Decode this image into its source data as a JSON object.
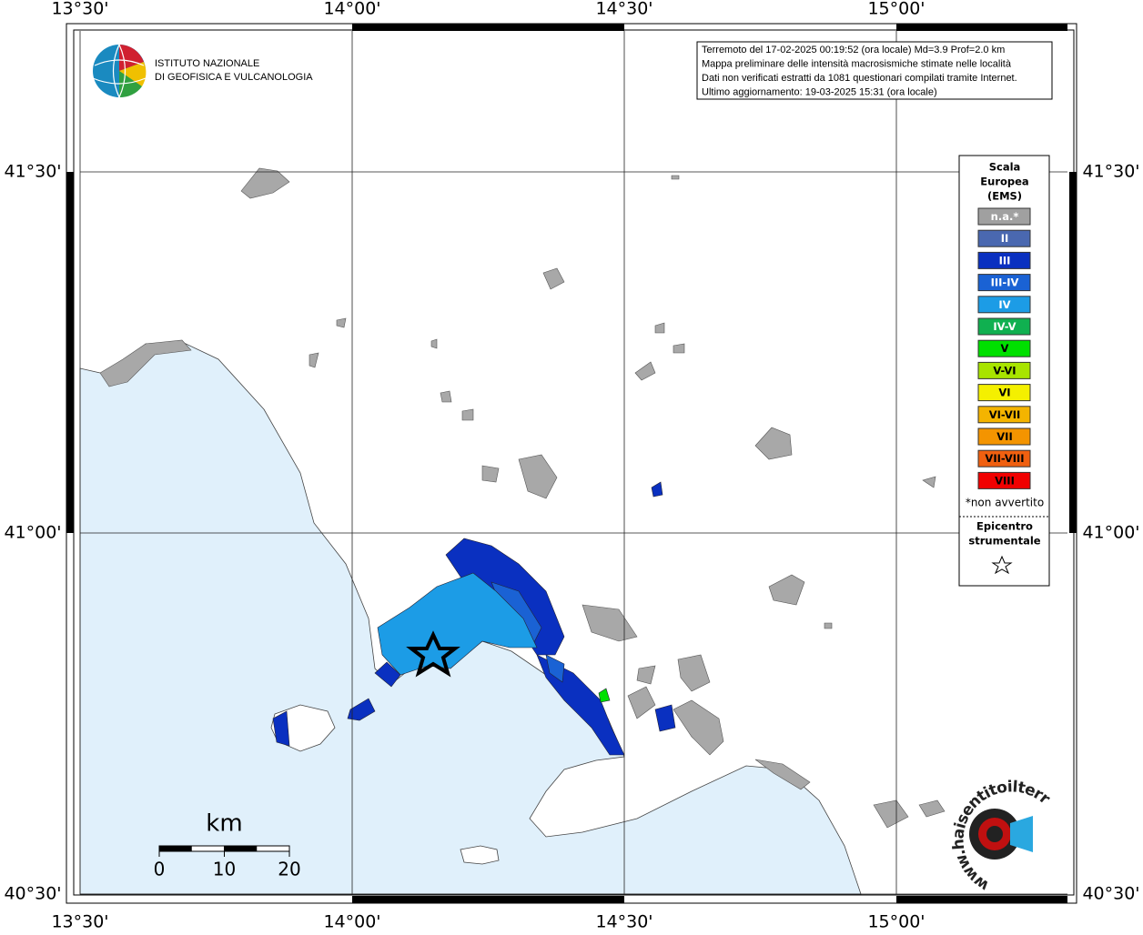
{
  "map": {
    "lon_ticks": [
      {
        "value": 13.5,
        "label": "13°30'"
      },
      {
        "value": 14.0,
        "label": "14°00'"
      },
      {
        "value": 14.5,
        "label": "14°30'"
      },
      {
        "value": 15.0,
        "label": "15°00'"
      }
    ],
    "lat_ticks": [
      {
        "value": 41.5,
        "label": "41°30'"
      },
      {
        "value": 41.0,
        "label": "41°00'"
      },
      {
        "value": 40.5,
        "label": "40°30'"
      }
    ]
  },
  "logo": {
    "line1": "ISTITUTO NAZIONALE",
    "line2": "DI GEOFISICA E VULCANOLOGIA"
  },
  "info": {
    "lines": [
      "Terremoto del 17-02-2025 00:19:52 (ora locale) Md=3.9 Prof=2.0 km",
      "Mappa preliminare delle intensità macrosismiche stimate nelle località",
      "Dati non verificati estratti da 1081 questionari compilati tramite Internet.",
      "Ultimo aggiornamento: 19-03-2025 15:31 (ora locale)"
    ]
  },
  "legend": {
    "title": [
      "Scala",
      "Europea",
      "(EMS)"
    ],
    "items": [
      {
        "label": "n.a.*",
        "color": "#a0a0a0"
      },
      {
        "label": "II",
        "color": "#4a68b0"
      },
      {
        "label": "III",
        "color": "#0a30c0"
      },
      {
        "label": "III-IV",
        "color": "#1a62d4"
      },
      {
        "label": "IV",
        "color": "#1c9ce6"
      },
      {
        "label": "IV-V",
        "color": "#10b050"
      },
      {
        "label": "V",
        "color": "#00e000"
      },
      {
        "label": "V-VI",
        "color": "#a8e400"
      },
      {
        "label": "VI",
        "color": "#f4f000"
      },
      {
        "label": "VI-VII",
        "color": "#f4b400"
      },
      {
        "label": "VII",
        "color": "#f49400"
      },
      {
        "label": "VII-VIII",
        "color": "#f06010"
      },
      {
        "label": "VIII",
        "color": "#f00000"
      }
    ],
    "note": "*non avvertito",
    "epicenter": [
      "Epicentro",
      "strumentale"
    ]
  },
  "scale_bar": {
    "unit": "km",
    "ticks": [
      0,
      10,
      20
    ]
  },
  "site_logo": "www.haisentitoilterremoto.it"
}
